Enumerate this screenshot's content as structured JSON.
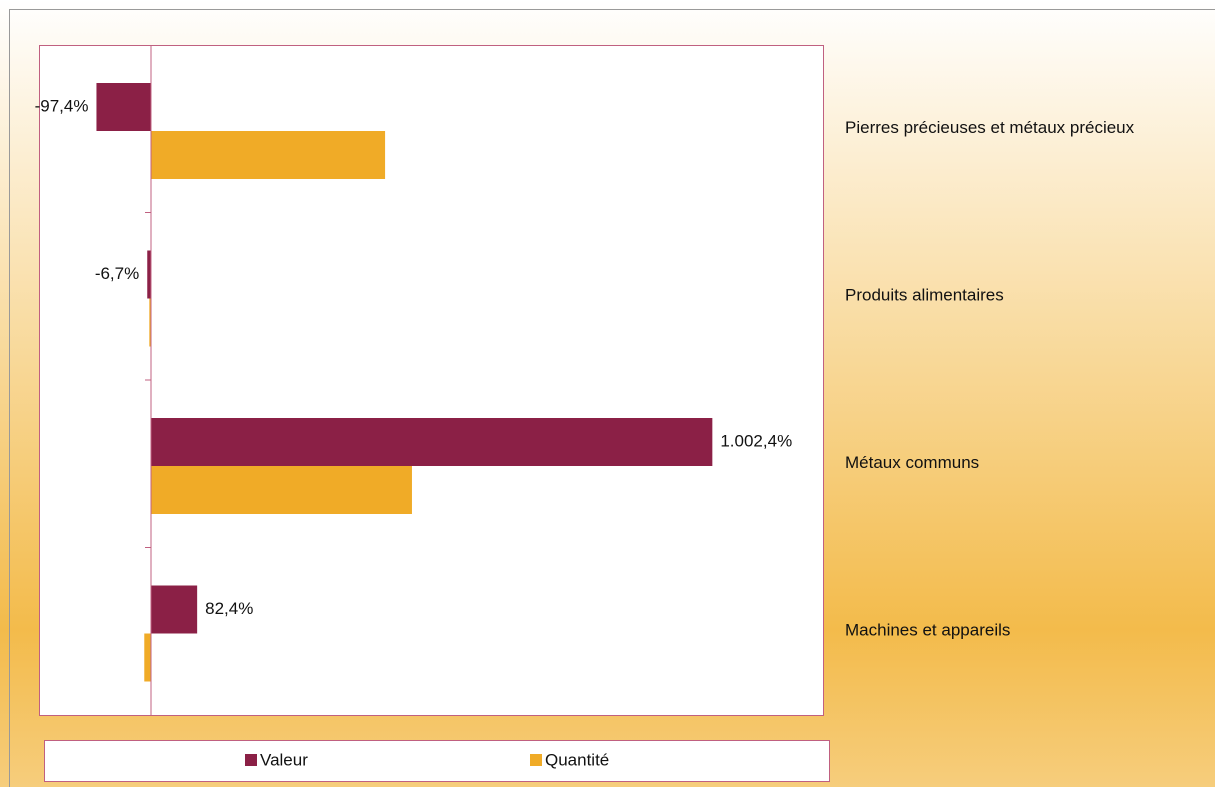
{
  "chart_data": {
    "type": "bar",
    "orientation": "horizontal",
    "categories": [
      "Pierres précieuses et métaux précieux",
      "Produits alimentaires",
      "Métaux communs",
      "Machines et appareils"
    ],
    "series": [
      {
        "name": "Valeur",
        "color": "#8b2046",
        "values": [
          -97.4,
          -6.7,
          1002.4,
          82.4
        ],
        "value_labels": [
          "-97,4%",
          "-6,7%",
          "1.002,4%",
          "82,4%"
        ]
      },
      {
        "name": "Quantité",
        "color": "#f0ab27",
        "values": [
          418,
          -3,
          466,
          -12
        ]
      }
    ],
    "xlim": [
      -200,
      1200
    ],
    "legend": "bottom"
  }
}
